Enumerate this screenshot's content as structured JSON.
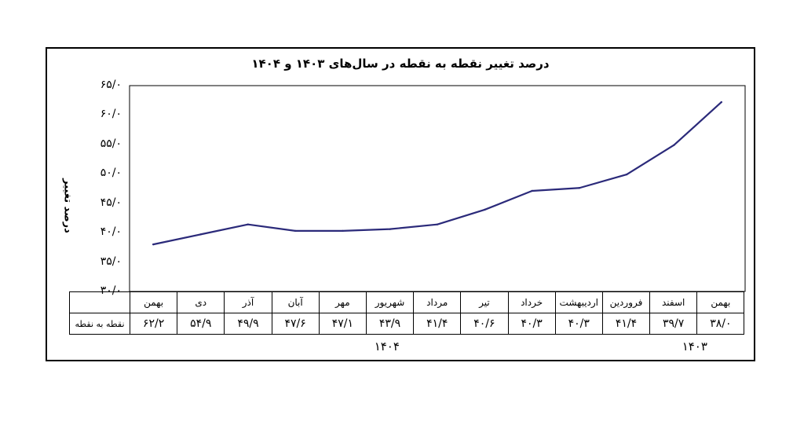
{
  "chart_data": {
    "type": "line",
    "title": "درصد تغییر نقطه به نقطه در سال‌های ۱۴۰۳ و ۱۴۰۴",
    "ylabel": "درصد تغییر",
    "xlabel": "",
    "ylim": [
      30,
      65
    ],
    "yticks": [
      30,
      35,
      40,
      45,
      50,
      55,
      60,
      65
    ],
    "ytick_labels": [
      "۳۰/۰",
      "۳۵/۰",
      "۴۰/۰",
      "۴۵/۰",
      "۵۰/۰",
      "۵۵/۰",
      "۶۰/۰",
      "۶۵/۰"
    ],
    "categories": [
      "بهمن",
      "اسفند",
      "فروردین",
      "اردیبهشت",
      "خرداد",
      "تیر",
      "مرداد",
      "شهریور",
      "مهر",
      "آبان",
      "آذر",
      "دی",
      "بهمن"
    ],
    "values": [
      38.0,
      39.7,
      41.4,
      40.3,
      40.3,
      40.6,
      41.4,
      43.9,
      47.1,
      47.6,
      49.9,
      54.9,
      62.2
    ],
    "value_labels": [
      "۳۸/۰",
      "۳۹/۷",
      "۴۱/۴",
      "۴۰/۳",
      "۴۰/۳",
      "۴۰/۶",
      "۴۱/۴",
      "۴۳/۹",
      "۴۷/۱",
      "۴۷/۶",
      "۴۹/۹",
      "۵۴/۹",
      "۶۲/۲"
    ],
    "row_label": "نقطه به نقطه",
    "years": [
      {
        "label": "۱۴۰۳",
        "center_index": 0.5
      },
      {
        "label": "۱۴۰۴",
        "center_index": 7
      }
    ],
    "line_color": "#2B2A7A",
    "grid": false
  }
}
